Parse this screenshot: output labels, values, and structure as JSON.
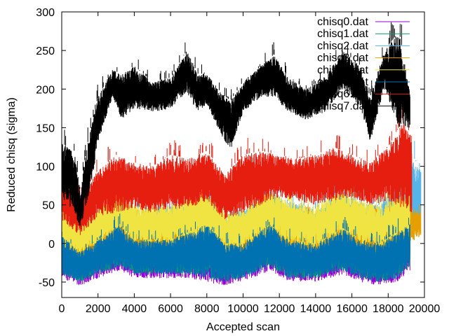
{
  "chart_data": {
    "type": "line",
    "title": "",
    "xlabel": "Accepted scan",
    "ylabel": "Reduced chisq (sigma)",
    "xlim": [
      0,
      20000
    ],
    "ylim": [
      -70,
      300
    ],
    "xticks": [
      0,
      2000,
      4000,
      6000,
      8000,
      10000,
      12000,
      14000,
      16000,
      18000,
      20000
    ],
    "yticks": [
      -50,
      0,
      50,
      100,
      150,
      200,
      250,
      300
    ],
    "grid": false,
    "legend_position": "top-right",
    "series": [
      {
        "name": "chisq0.dat",
        "color": "#9400d3",
        "x": [
          0,
          1000,
          2000,
          3200,
          4000,
          6000,
          7000,
          8000,
          9000,
          10000,
          11500,
          12500,
          14000,
          15500,
          16500,
          17500,
          18500,
          19200
        ],
        "low": [
          -45,
          -55,
          -45,
          -35,
          -45,
          -45,
          -45,
          -50,
          -55,
          -50,
          -35,
          -50,
          -50,
          -40,
          -50,
          -55,
          -50,
          -35
        ],
        "high": [
          10,
          -10,
          5,
          20,
          0,
          5,
          15,
          25,
          0,
          0,
          25,
          5,
          0,
          20,
          5,
          0,
          15,
          25
        ]
      },
      {
        "name": "chisq1.dat",
        "color": "#009e73",
        "x": [
          0,
          1000,
          2000,
          3200,
          4000,
          6000,
          7000,
          8000,
          9000,
          10000,
          11500,
          12500,
          14000,
          15500,
          16500,
          17500,
          18500,
          19200
        ],
        "low": [
          -40,
          -50,
          -40,
          -30,
          -40,
          -40,
          -40,
          -45,
          -50,
          -45,
          -30,
          -45,
          -45,
          -35,
          -45,
          -50,
          -45,
          -30
        ],
        "high": [
          15,
          -5,
          10,
          25,
          5,
          10,
          20,
          30,
          5,
          5,
          30,
          10,
          5,
          25,
          10,
          5,
          20,
          30
        ]
      },
      {
        "name": "chisq2.dat",
        "color": "#56b4e9",
        "x": [
          0,
          1000,
          2000,
          3200,
          4000,
          6000,
          7000,
          8000,
          9000,
          10000,
          11500,
          12500,
          14000,
          15500,
          16500,
          17500,
          18500,
          19200,
          19800
        ],
        "low": [
          -20,
          -30,
          -15,
          0,
          -15,
          -15,
          -10,
          -5,
          -25,
          -20,
          0,
          -15,
          -20,
          -5,
          -15,
          -20,
          -10,
          10,
          20
        ],
        "high": [
          45,
          20,
          40,
          70,
          45,
          50,
          60,
          75,
          40,
          45,
          75,
          55,
          45,
          70,
          55,
          50,
          80,
          120,
          95
        ]
      },
      {
        "name": "chisq3.dat",
        "color": "#e69f00",
        "x": [
          0,
          1000,
          2000,
          3200,
          4000,
          6000,
          7000,
          8000,
          9000,
          10000,
          11500,
          12500,
          14000,
          15500,
          16500,
          17500,
          18500,
          19200,
          19800
        ],
        "low": [
          -15,
          -25,
          -10,
          5,
          -10,
          -10,
          -5,
          0,
          -20,
          -15,
          5,
          -10,
          -15,
          0,
          -10,
          -15,
          -5,
          0,
          10
        ],
        "high": [
          30,
          10,
          30,
          55,
          35,
          35,
          45,
          55,
          25,
          30,
          55,
          40,
          35,
          55,
          40,
          35,
          45,
          50,
          40
        ]
      },
      {
        "name": "chisq4.dat",
        "color": "#f0e442",
        "x": [
          0,
          1000,
          2000,
          3200,
          4000,
          6000,
          7000,
          8000,
          9000,
          10000,
          11500,
          12500,
          14000,
          15500,
          16500,
          17500,
          18500,
          19200
        ],
        "low": [
          -5,
          -15,
          0,
          15,
          0,
          0,
          5,
          10,
          -10,
          -5,
          15,
          0,
          -5,
          10,
          0,
          -5,
          5,
          15
        ],
        "high": [
          45,
          25,
          45,
          75,
          50,
          50,
          60,
          70,
          40,
          45,
          70,
          55,
          50,
          70,
          55,
          50,
          60,
          70
        ]
      },
      {
        "name": "chisq5.dat",
        "color": "#0072b2",
        "x": [
          0,
          1000,
          2000,
          3200,
          4000,
          6000,
          7000,
          8000,
          9000,
          10000,
          11500,
          12500,
          14000,
          15500,
          16500,
          17500,
          18500,
          19200
        ],
        "low": [
          -40,
          -50,
          -40,
          -30,
          -40,
          -40,
          -40,
          -45,
          -50,
          -45,
          -30,
          -45,
          -45,
          -35,
          -45,
          -50,
          -45,
          -30
        ],
        "high": [
          10,
          -10,
          5,
          25,
          5,
          5,
          15,
          25,
          0,
          0,
          25,
          5,
          0,
          20,
          5,
          0,
          15,
          25
        ]
      },
      {
        "name": "chisq6.dat",
        "color": "#e51e10",
        "x": [
          0,
          1000,
          2000,
          3000,
          4000,
          5000,
          6000,
          7000,
          8000,
          9000,
          10000,
          11000,
          12000,
          13000,
          14000,
          15000,
          16000,
          17000,
          18000,
          18800,
          19300
        ],
        "low": [
          30,
          10,
          35,
          40,
          45,
          40,
          45,
          45,
          55,
          30,
          40,
          50,
          60,
          55,
          50,
          55,
          60,
          50,
          55,
          45,
          40
        ],
        "high": [
          80,
          60,
          95,
          115,
          105,
          100,
          115,
          110,
          120,
          90,
          115,
          120,
          115,
          110,
          115,
          125,
          115,
          105,
          125,
          160,
          140
        ]
      },
      {
        "name": "chisq7.dat",
        "color": "#000000",
        "x": [
          0,
          700,
          1000,
          1500,
          2000,
          2800,
          3300,
          4000,
          5000,
          6000,
          6900,
          7500,
          8000,
          8800,
          9300,
          10000,
          11000,
          11700,
          12500,
          13500,
          14500,
          15500,
          16500,
          17000,
          17800,
          18600,
          19200
        ],
        "low": [
          60,
          40,
          20,
          60,
          130,
          190,
          160,
          175,
          170,
          175,
          195,
          170,
          180,
          140,
          120,
          170,
          190,
          190,
          170,
          160,
          170,
          200,
          175,
          130,
          200,
          150,
          150
        ],
        "high": [
          130,
          120,
          70,
          140,
          190,
          225,
          220,
          230,
          210,
          215,
          250,
          220,
          220,
          195,
          185,
          210,
          230,
          245,
          215,
          200,
          215,
          250,
          230,
          190,
          250,
          275,
          200
        ]
      }
    ]
  }
}
